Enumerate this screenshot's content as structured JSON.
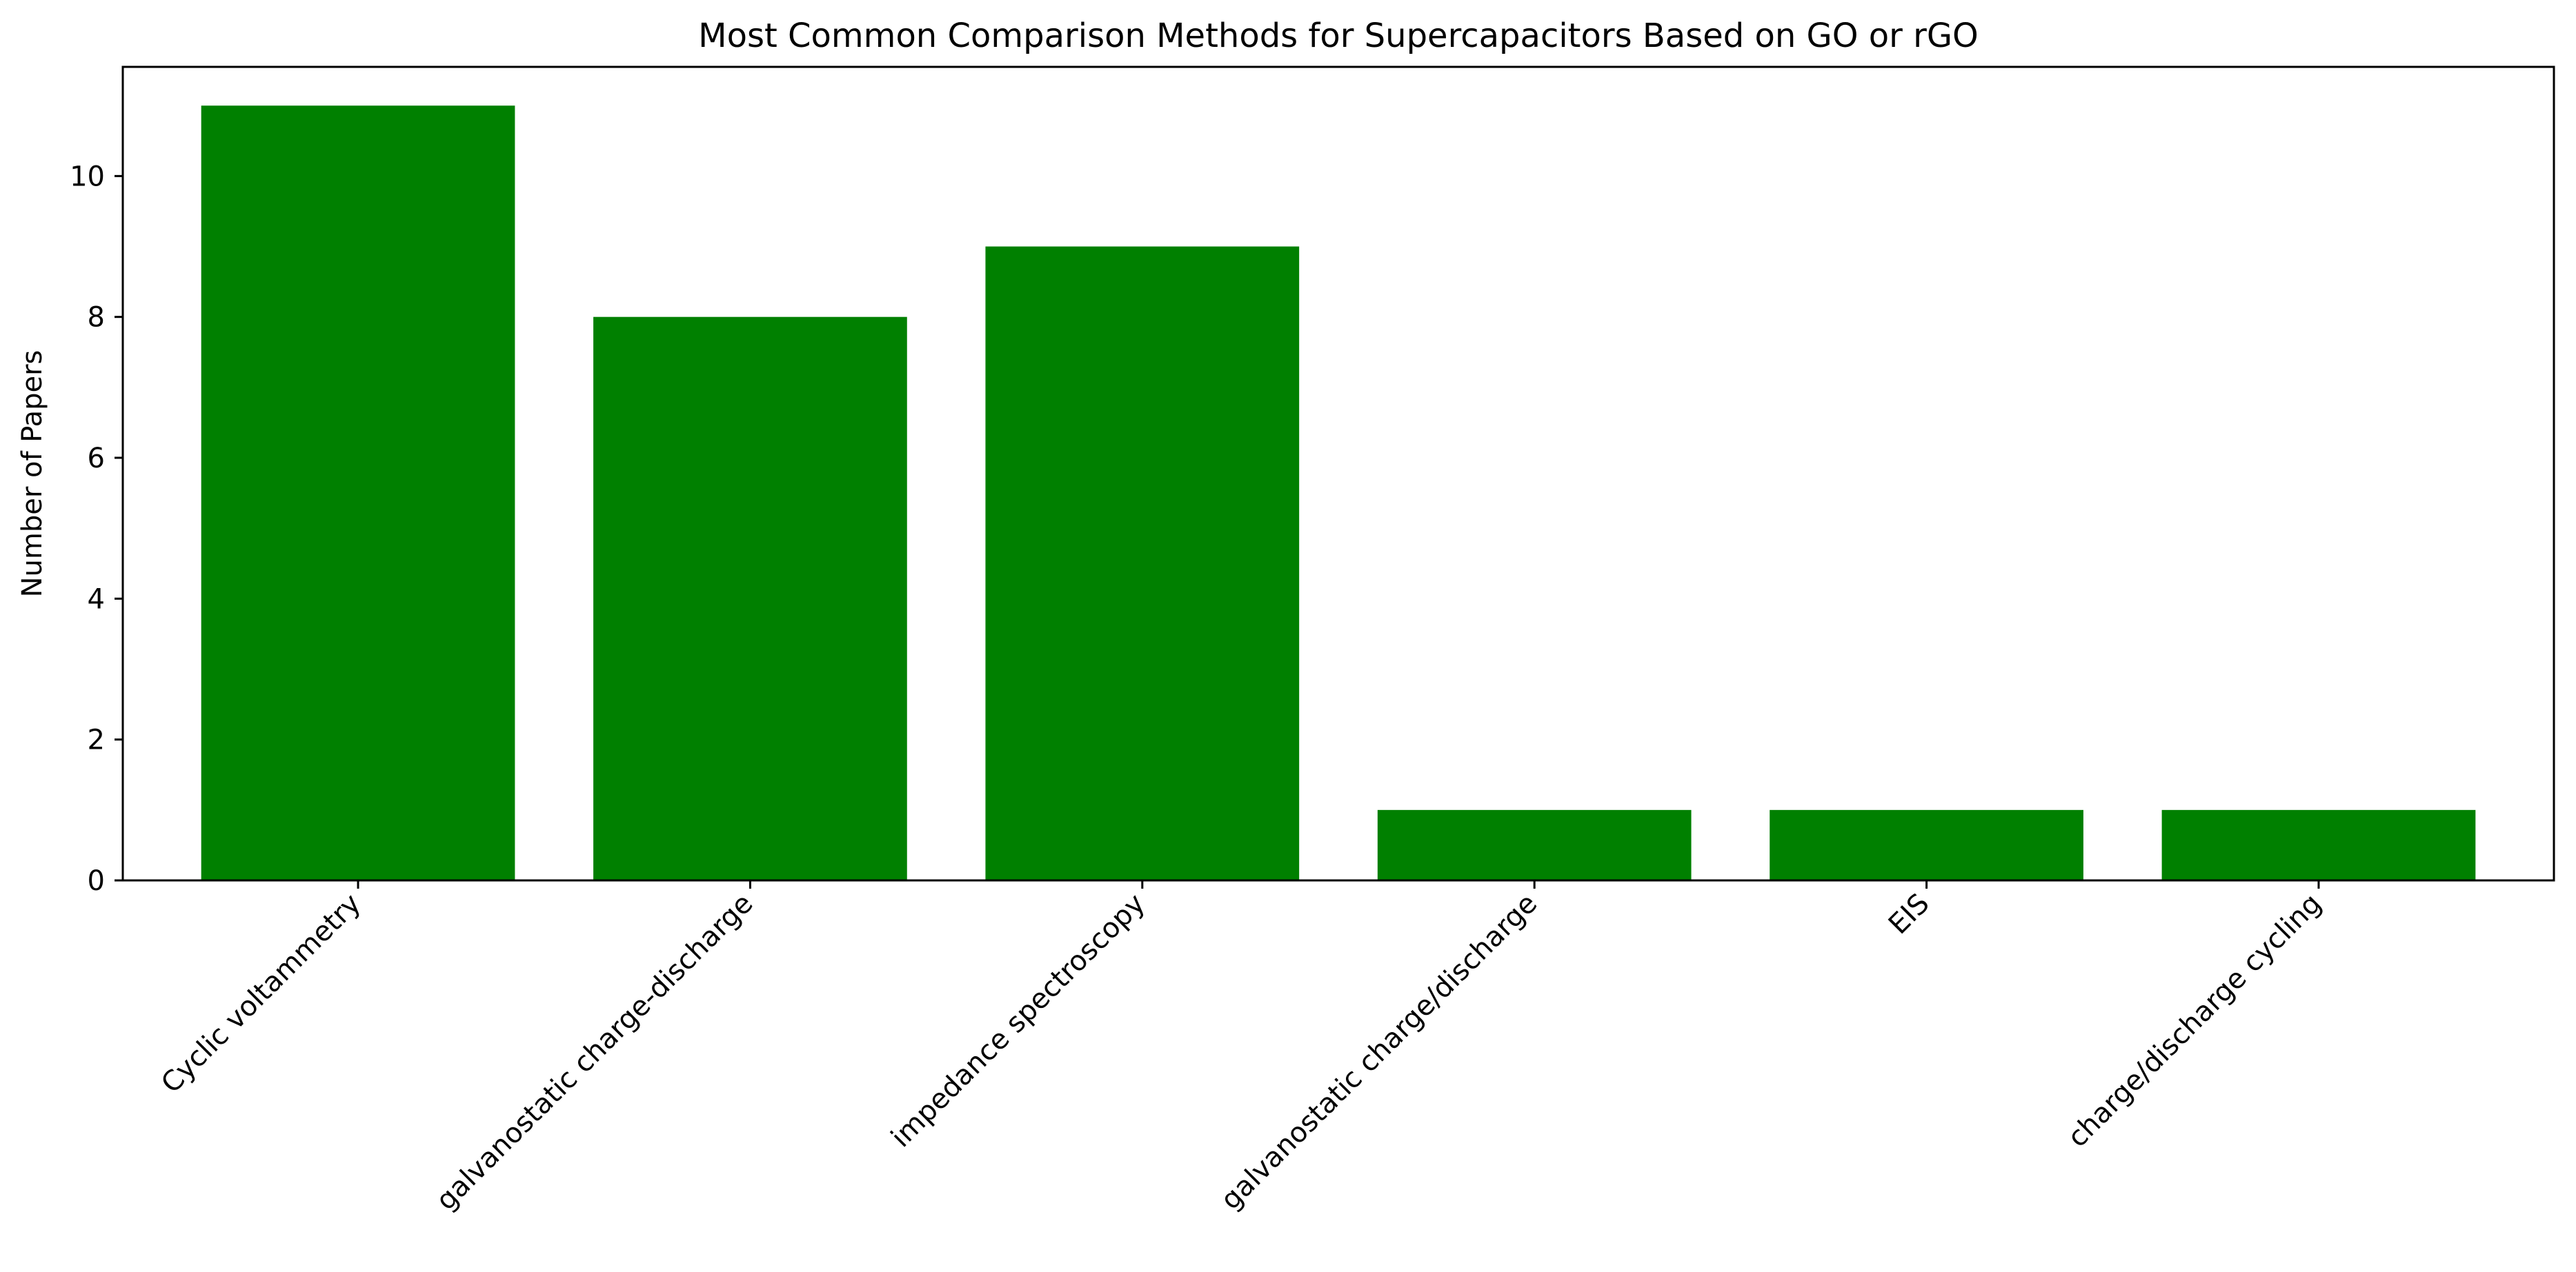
{
  "chart_data": {
    "type": "bar",
    "title": "Most Common Comparison Methods for Supercapacitors Based on GO or rGO",
    "xlabel": "",
    "ylabel": "Number of Papers",
    "categories": [
      "Cyclic voltammetry",
      "galvanostatic charge-discharge",
      "impedance spectroscopy",
      "galvanostatic charge/discharge",
      "EIS",
      "charge/discharge cycling"
    ],
    "values": [
      11,
      8,
      9,
      1,
      1,
      1
    ],
    "ylim": [
      0,
      11.55
    ],
    "yticks": [
      0,
      2,
      4,
      6,
      8,
      10
    ],
    "bar_color": "#008000",
    "grid": false,
    "legend": "none"
  }
}
